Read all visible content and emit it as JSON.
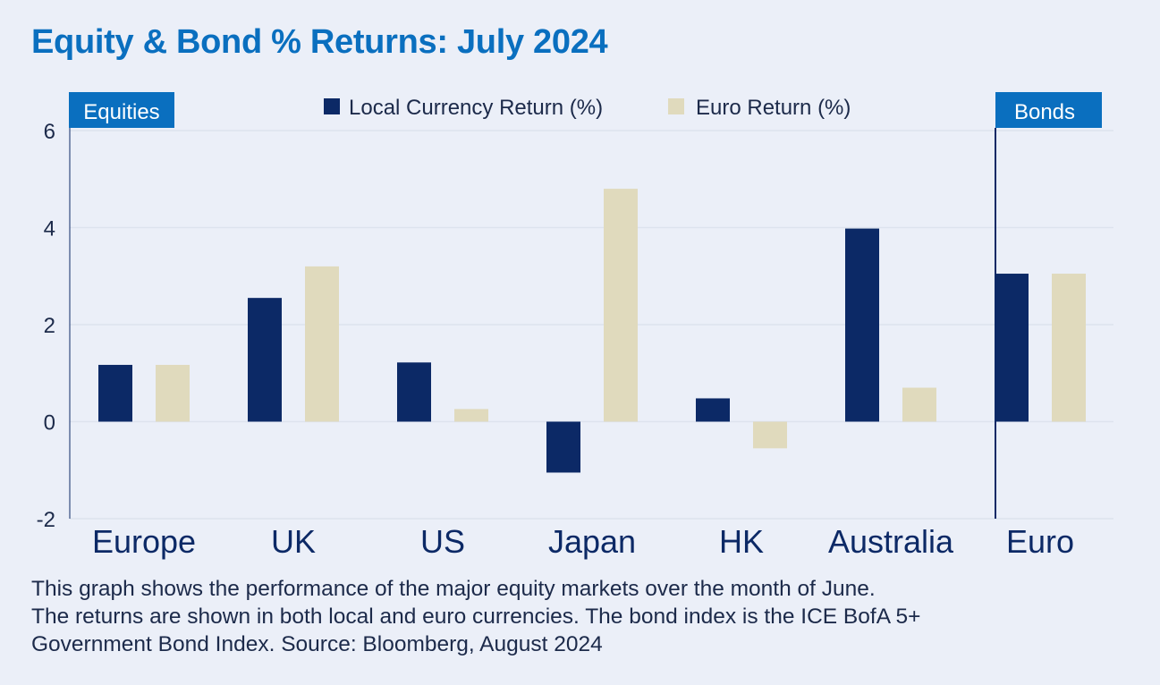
{
  "title": "Equity & Bond % Returns: July 2024",
  "caption": [
    "This graph shows the performance of the major equity markets over the month of June.",
    "The returns are shown in both local and euro currencies. The bond index is the ICE BofA 5+",
    "Government Bond Index. Source: Bloomberg, August 2024"
  ],
  "colors": {
    "background": "#ebeff8",
    "title": "#0a6fbf",
    "local": "#0c2966",
    "euro": "#e0dabd",
    "label_box": "#0a6fbf",
    "divider": "#0c2966",
    "grid": "#dde3ee"
  },
  "chart_data": {
    "type": "bar",
    "categories": [
      "Europe",
      "UK",
      "US",
      "Japan",
      "HK",
      "Australia",
      "Euro"
    ],
    "series": [
      {
        "name": "Local Currency Return (%)",
        "values": [
          1.17,
          2.55,
          1.22,
          -1.05,
          0.48,
          3.98,
          3.05
        ]
      },
      {
        "name": "Euro Return (%)",
        "values": [
          1.17,
          3.2,
          0.26,
          4.8,
          -0.55,
          0.7,
          3.05
        ]
      }
    ],
    "ylim": [
      -2,
      6
    ],
    "yticks": [
      "-2",
      "0",
      "2",
      "4",
      "6"
    ],
    "grid": true,
    "legend_position": "top-center",
    "section_labels": {
      "equities": "Equities",
      "bonds": "Bonds"
    }
  }
}
